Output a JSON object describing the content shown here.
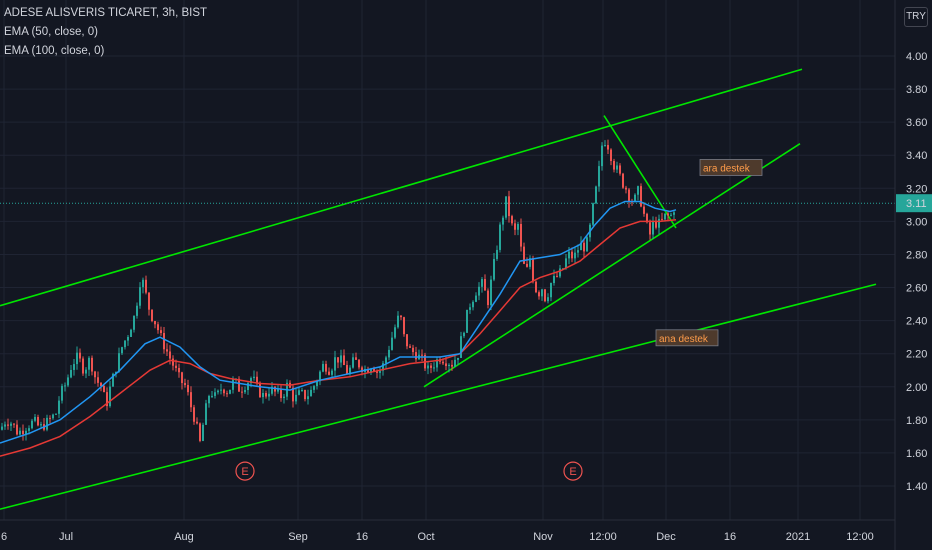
{
  "legend": {
    "symbol": "ADESE ALISVERIS TICARET, 3h, BIST",
    "ema1": "EMA (50, close, 0)",
    "ema2": "EMA (100, close, 0)"
  },
  "currency": "TRY",
  "last_price_label": "3.11",
  "colors": {
    "background": "#131722",
    "up": "#26a69a",
    "down": "#ef5350",
    "ema50": "#2196f3",
    "ema100": "#e53935",
    "trendline": "#00e600",
    "earnings": "#ef5350"
  },
  "chart_data": {
    "type": "candlestick",
    "y_ticks": [
      "1.40",
      "1.60",
      "1.80",
      "2.00",
      "2.20",
      "2.40",
      "2.60",
      "2.80",
      "3.00",
      "3.20",
      "3.40",
      "3.60",
      "3.80",
      "4.00"
    ],
    "x_ticks": [
      "6",
      "Jul",
      "Aug",
      "Sep",
      "16",
      "Oct",
      "Nov",
      "12:00",
      "Dec",
      "16",
      "2021",
      "12:00"
    ],
    "ylim": [
      1.35,
      4.15
    ],
    "last_price": 3.11,
    "price_path": [
      [
        0,
        1.74
      ],
      [
        6,
        1.8
      ],
      [
        12,
        1.78
      ],
      [
        18,
        1.72
      ],
      [
        26,
        1.76
      ],
      [
        34,
        1.79
      ],
      [
        40,
        1.75
      ],
      [
        48,
        1.79
      ],
      [
        56,
        1.84
      ],
      [
        60,
        1.95
      ],
      [
        66,
        2.02
      ],
      [
        72,
        2.14
      ],
      [
        78,
        2.18
      ],
      [
        84,
        2.1
      ],
      [
        90,
        2.17
      ],
      [
        96,
        2.04
      ],
      [
        102,
        2.0
      ],
      [
        106,
        1.88
      ],
      [
        110,
        1.99
      ],
      [
        116,
        2.12
      ],
      [
        122,
        2.24
      ],
      [
        128,
        2.32
      ],
      [
        134,
        2.42
      ],
      [
        138,
        2.55
      ],
      [
        141,
        2.68
      ],
      [
        145,
        2.58
      ],
      [
        150,
        2.45
      ],
      [
        156,
        2.38
      ],
      [
        162,
        2.28
      ],
      [
        168,
        2.2
      ],
      [
        174,
        2.12
      ],
      [
        180,
        2.04
      ],
      [
        186,
        2.0
      ],
      [
        190,
        1.9
      ],
      [
        195,
        1.8
      ],
      [
        200,
        1.66
      ],
      [
        205,
        1.84
      ],
      [
        210,
        1.98
      ],
      [
        216,
        1.93
      ],
      [
        222,
        2.0
      ],
      [
        228,
        1.97
      ],
      [
        234,
        2.04
      ],
      [
        240,
        1.98
      ],
      [
        246,
        2.02
      ],
      [
        252,
        2.06
      ],
      [
        258,
        1.98
      ],
      [
        264,
        1.94
      ],
      [
        270,
        1.99
      ],
      [
        276,
        1.96
      ],
      [
        282,
        1.94
      ],
      [
        288,
        2.02
      ],
      [
        294,
        1.92
      ],
      [
        300,
        1.96
      ],
      [
        306,
        1.94
      ],
      [
        312,
        1.98
      ],
      [
        318,
        2.06
      ],
      [
        324,
        2.14
      ],
      [
        330,
        2.1
      ],
      [
        336,
        2.18
      ],
      [
        342,
        2.15
      ],
      [
        348,
        2.08
      ],
      [
        354,
        2.16
      ],
      [
        360,
        2.13
      ],
      [
        366,
        2.1
      ],
      [
        372,
        2.14
      ],
      [
        378,
        2.08
      ],
      [
        384,
        2.14
      ],
      [
        390,
        2.26
      ],
      [
        396,
        2.38
      ],
      [
        400,
        2.44
      ],
      [
        404,
        2.3
      ],
      [
        410,
        2.22
      ],
      [
        416,
        2.2
      ],
      [
        422,
        2.16
      ],
      [
        428,
        2.1
      ],
      [
        434,
        2.14
      ],
      [
        440,
        2.18
      ],
      [
        446,
        2.16
      ],
      [
        452,
        2.14
      ],
      [
        458,
        2.2
      ],
      [
        464,
        2.36
      ],
      [
        470,
        2.5
      ],
      [
        476,
        2.58
      ],
      [
        482,
        2.62
      ],
      [
        488,
        2.52
      ],
      [
        494,
        2.74
      ],
      [
        500,
        2.96
      ],
      [
        506,
        3.12
      ],
      [
        510,
        3.02
      ],
      [
        514,
        2.92
      ],
      [
        518,
        2.98
      ],
      [
        522,
        2.78
      ],
      [
        526,
        2.68
      ],
      [
        530,
        2.78
      ],
      [
        534,
        2.62
      ],
      [
        538,
        2.56
      ],
      [
        542,
        2.6
      ],
      [
        546,
        2.52
      ],
      [
        550,
        2.62
      ],
      [
        556,
        2.66
      ],
      [
        562,
        2.7
      ],
      [
        568,
        2.8
      ],
      [
        574,
        2.78
      ],
      [
        580,
        2.86
      ],
      [
        586,
        2.84
      ],
      [
        590,
        2.96
      ],
      [
        594,
        3.12
      ],
      [
        598,
        3.26
      ],
      [
        602,
        3.46
      ],
      [
        606,
        3.5
      ],
      [
        610,
        3.42
      ],
      [
        614,
        3.34
      ],
      [
        618,
        3.3
      ],
      [
        622,
        3.24
      ],
      [
        626,
        3.2
      ],
      [
        630,
        3.14
      ],
      [
        634,
        3.12
      ],
      [
        638,
        3.18
      ],
      [
        642,
        3.1
      ],
      [
        646,
        2.98
      ],
      [
        650,
        2.92
      ],
      [
        654,
        3.0
      ],
      [
        658,
        2.98
      ],
      [
        662,
        3.0
      ],
      [
        666,
        3.04
      ],
      [
        670,
        3.02
      ],
      [
        674,
        3.08
      ],
      [
        676,
        3.11
      ]
    ],
    "ema50": [
      [
        0,
        1.66
      ],
      [
        30,
        1.72
      ],
      [
        60,
        1.8
      ],
      [
        90,
        1.94
      ],
      [
        120,
        2.1
      ],
      [
        145,
        2.26
      ],
      [
        160,
        2.3
      ],
      [
        180,
        2.24
      ],
      [
        200,
        2.12
      ],
      [
        220,
        2.04
      ],
      [
        240,
        2.02
      ],
      [
        260,
        2.0
      ],
      [
        290,
        1.98
      ],
      [
        320,
        2.04
      ],
      [
        350,
        2.08
      ],
      [
        380,
        2.12
      ],
      [
        400,
        2.18
      ],
      [
        420,
        2.18
      ],
      [
        440,
        2.18
      ],
      [
        460,
        2.2
      ],
      [
        480,
        2.38
      ],
      [
        500,
        2.56
      ],
      [
        520,
        2.76
      ],
      [
        540,
        2.78
      ],
      [
        560,
        2.8
      ],
      [
        580,
        2.86
      ],
      [
        595,
        2.98
      ],
      [
        610,
        3.08
      ],
      [
        625,
        3.12
      ],
      [
        640,
        3.12
      ],
      [
        655,
        3.08
      ],
      [
        670,
        3.06
      ],
      [
        676,
        3.07
      ]
    ],
    "ema100": [
      [
        0,
        1.58
      ],
      [
        30,
        1.63
      ],
      [
        60,
        1.7
      ],
      [
        90,
        1.82
      ],
      [
        120,
        1.96
      ],
      [
        150,
        2.1
      ],
      [
        170,
        2.16
      ],
      [
        190,
        2.14
      ],
      [
        210,
        2.08
      ],
      [
        230,
        2.05
      ],
      [
        260,
        2.02
      ],
      [
        290,
        2.01
      ],
      [
        320,
        2.04
      ],
      [
        350,
        2.06
      ],
      [
        380,
        2.1
      ],
      [
        410,
        2.14
      ],
      [
        440,
        2.16
      ],
      [
        460,
        2.2
      ],
      [
        480,
        2.32
      ],
      [
        500,
        2.46
      ],
      [
        520,
        2.6
      ],
      [
        540,
        2.66
      ],
      [
        560,
        2.7
      ],
      [
        580,
        2.76
      ],
      [
        600,
        2.86
      ],
      [
        620,
        2.96
      ],
      [
        640,
        3.0
      ],
      [
        660,
        3.0
      ],
      [
        676,
        3.01
      ]
    ],
    "trendlines": [
      {
        "from": [
          0,
          2.49
        ],
        "to": [
          802,
          3.92
        ]
      },
      {
        "from": [
          0,
          1.26
        ],
        "to": [
          876,
          2.62
        ]
      },
      {
        "from": [
          424,
          2.0
        ],
        "to": [
          800,
          3.47
        ]
      },
      {
        "from": [
          604,
          3.64
        ],
        "to": [
          676,
          2.96
        ]
      }
    ],
    "annotations": [
      {
        "text": "ara destek",
        "at": [
          700,
          3.32
        ]
      },
      {
        "text": "ana destek",
        "at": [
          656,
          2.29
        ]
      }
    ],
    "earnings_markers": [
      {
        "label": "E",
        "at": [
          245,
          1.49
        ]
      },
      {
        "label": "E",
        "at": [
          573,
          1.49
        ]
      }
    ]
  }
}
